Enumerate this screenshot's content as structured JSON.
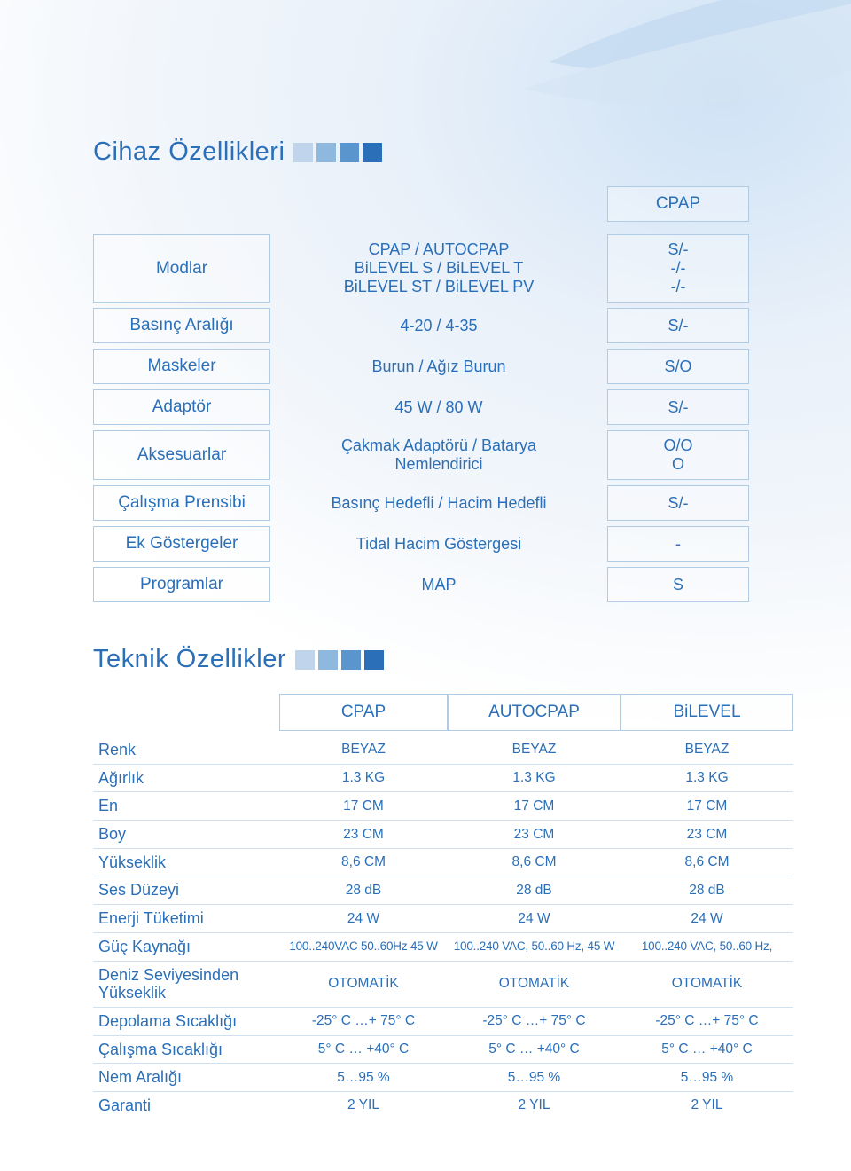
{
  "titles": {
    "section1": "Cihaz Özellikleri",
    "section2": "Teknik Özellikler"
  },
  "colors": {
    "text": "#2a6fb8",
    "border": "#b0cbe4",
    "squares": [
      "#c0d5eb",
      "#8eb8dd",
      "#5a95cd",
      "#2a6fb8"
    ]
  },
  "table1": {
    "header_col3": "CPAP",
    "rows": [
      {
        "label": "Modlar",
        "mid": [
          "CPAP / AUTOCPAP",
          "BiLEVEL S / BiLEVEL T",
          "BiLEVEL ST / BiLEVEL PV"
        ],
        "val": [
          "S/-",
          "-/-",
          "-/-"
        ]
      },
      {
        "label": "Basınç Aralığı",
        "mid": [
          "4-20 / 4-35"
        ],
        "val": [
          "S/-"
        ]
      },
      {
        "label": "Maskeler",
        "mid": [
          "Burun / Ağız Burun"
        ],
        "val": [
          "S/O"
        ]
      },
      {
        "label": "Adaptör",
        "mid": [
          "45 W / 80 W"
        ],
        "val": [
          "S/-"
        ]
      },
      {
        "label": "Aksesuarlar",
        "mid": [
          "Çakmak Adaptörü / Batarya",
          "Nemlendirici"
        ],
        "val": [
          "O/O",
          "O"
        ]
      },
      {
        "label": "Çalışma Prensibi",
        "mid": [
          "Basınç Hedefli / Hacim Hedefli"
        ],
        "val": [
          "S/-"
        ]
      },
      {
        "label": "Ek Göstergeler",
        "mid": [
          "Tidal Hacim Göstergesi"
        ],
        "val": [
          "-"
        ]
      },
      {
        "label": "Programlar",
        "mid": [
          "MAP"
        ],
        "val": [
          "S"
        ]
      }
    ]
  },
  "table2": {
    "headers": [
      "CPAP",
      "AUTOCPAP",
      "BiLEVEL"
    ],
    "rows": [
      {
        "label": "Renk",
        "c": [
          "BEYAZ",
          "BEYAZ",
          "BEYAZ"
        ]
      },
      {
        "label": "Ağırlık",
        "c": [
          "1.3 KG",
          "1.3 KG",
          "1.3 KG"
        ]
      },
      {
        "label": "En",
        "c": [
          "17 CM",
          "17 CM",
          "17 CM"
        ]
      },
      {
        "label": "Boy",
        "c": [
          "23 CM",
          "23 CM",
          "23 CM"
        ]
      },
      {
        "label": "Yükseklik",
        "c": [
          "8,6 CM",
          "8,6 CM",
          "8,6 CM"
        ]
      },
      {
        "label": "Ses Düzeyi",
        "c": [
          "28 dB",
          "28 dB",
          "28 dB"
        ]
      },
      {
        "label": "Enerji Tüketimi",
        "c": [
          "24 W",
          "24 W",
          "24 W"
        ]
      },
      {
        "label": "Güç Kaynağı",
        "c": [
          "100..240VAC 50..60Hz 45 W",
          "100..240 VAC, 50..60 Hz, 45 W",
          "100..240 VAC, 50..60 Hz,"
        ],
        "small": true
      },
      {
        "label": "Deniz Seviyesinden\nYükseklik",
        "c": [
          "OTOMATİK",
          "OTOMATİK",
          "OTOMATİK"
        ]
      },
      {
        "label": "Depolama Sıcaklığı",
        "c": [
          "-25° C …+ 75° C",
          "-25° C …+ 75° C",
          "-25° C …+ 75° C"
        ]
      },
      {
        "label": "Çalışma Sıcaklığı",
        "c": [
          "5° C … +40° C",
          "5° C … +40° C",
          "5° C … +40° C"
        ]
      },
      {
        "label": "Nem Aralığı",
        "c": [
          "5…95 %",
          "5…95 %",
          "5…95 %"
        ]
      },
      {
        "label": "Garanti",
        "c": [
          "2 YIL",
          "2 YIL",
          "2 YIL"
        ]
      }
    ]
  }
}
